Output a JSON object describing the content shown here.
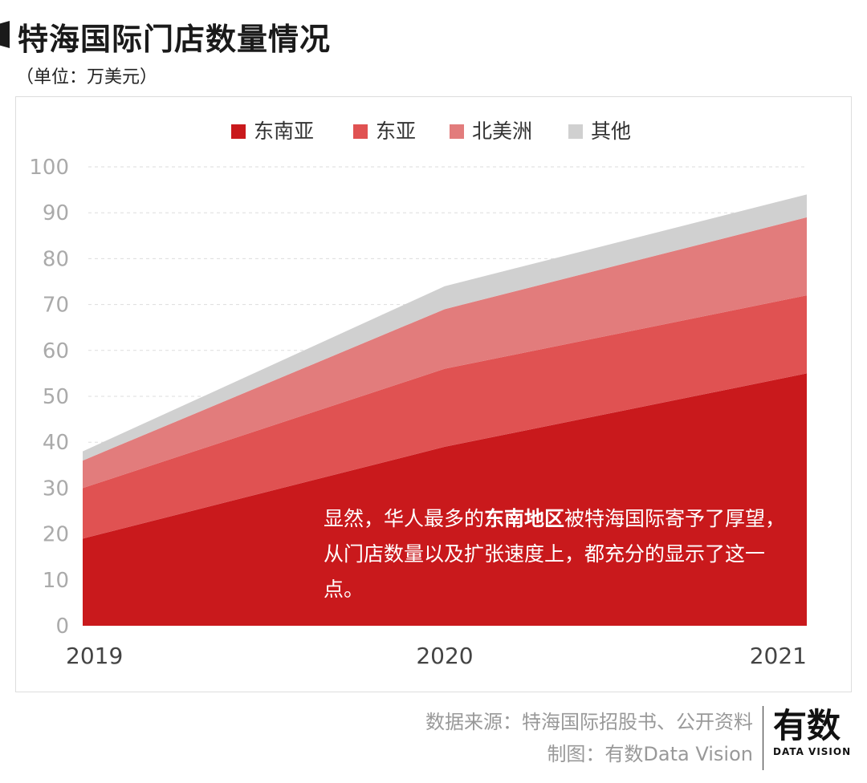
{
  "header": {
    "title": "特海国际门店数量情况",
    "unit": "（单位：万美元）"
  },
  "chart_data": {
    "type": "area",
    "stacked": true,
    "categories": [
      "2019",
      "2020",
      "2021"
    ],
    "series": [
      {
        "name": "东南亚",
        "values": [
          19,
          39,
          55
        ],
        "color": "#c9191c"
      },
      {
        "name": "东亚",
        "values": [
          11,
          17,
          17
        ],
        "color": "#e05252"
      },
      {
        "name": "北美洲",
        "values": [
          6,
          13,
          17
        ],
        "color": "#e27c7c"
      },
      {
        "name": "其他",
        "values": [
          2,
          5,
          5
        ],
        "color": "#d0d0d0"
      }
    ],
    "ylim": [
      0,
      100
    ],
    "yticks": [
      "0",
      "10",
      "20",
      "30",
      "40",
      "50",
      "60",
      "70",
      "80",
      "90",
      "100"
    ],
    "grid": true,
    "legend": "top"
  },
  "annotation": {
    "pre": "显然，华人最多的",
    "bold": "东南地区",
    "post": "被特海国际寄予了厚望，从门店数量以及扩张速度上，都充分的显示了这一点。"
  },
  "footer": {
    "source": "数据来源：特海国际招股书、公开资料",
    "made_by": "制图：有数Data Vision",
    "logo_big": "有数",
    "logo_small": "DATA VISION"
  }
}
